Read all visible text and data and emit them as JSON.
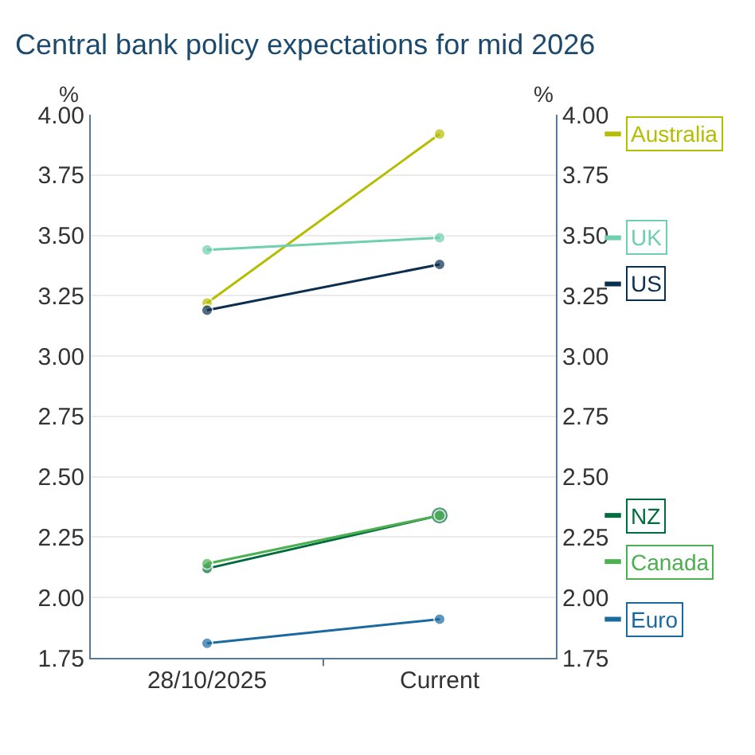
{
  "chart_data": {
    "type": "line",
    "title": "Central bank policy expectations for mid 2026",
    "ylabel": "%",
    "y2label": "%",
    "categories": [
      "28/10/2025",
      "Current"
    ],
    "series": [
      {
        "name": "Australia",
        "color": "#b5bd00",
        "values": [
          3.22,
          3.92
        ]
      },
      {
        "name": "UK",
        "color": "#6fcfae",
        "values": [
          3.44,
          3.49
        ]
      },
      {
        "name": "US",
        "color": "#0b2f4f",
        "values": [
          3.19,
          3.38
        ]
      },
      {
        "name": "NZ",
        "color": "#006b3c",
        "values": [
          2.12,
          2.34
        ]
      },
      {
        "name": "Canada",
        "color": "#4caf50",
        "values": [
          2.14,
          2.34
        ]
      },
      {
        "name": "Euro",
        "color": "#1a6aa0",
        "values": [
          1.81,
          1.91
        ]
      }
    ],
    "ylim": [
      1.75,
      4.0
    ],
    "yticks": [
      1.75,
      {
        "value": 2,
        "label": "2.00"
      },
      2.25,
      {
        "value": 2.5,
        "label": "2.50"
      },
      2.75,
      {
        "value": 3,
        "label": "3.00"
      },
      3.25,
      {
        "value": 3.5,
        "label": "3.50"
      },
      3.75,
      {
        "value": 4,
        "label": "4.00"
      }
    ],
    "y2lim": [
      1.75,
      4.0
    ],
    "y2ticks": [
      1.75,
      {
        "value": 2,
        "label": "2.00"
      },
      2.25,
      {
        "value": 2.5,
        "label": "2.50"
      },
      2.75,
      {
        "value": 3,
        "label": "3.00"
      },
      3.25,
      {
        "value": 3.5,
        "label": "3.50"
      },
      3.75,
      {
        "value": 4,
        "label": "4.00"
      }
    ],
    "grid": "y",
    "legend": "right",
    "marker": "circle",
    "line_style": "solid"
  }
}
